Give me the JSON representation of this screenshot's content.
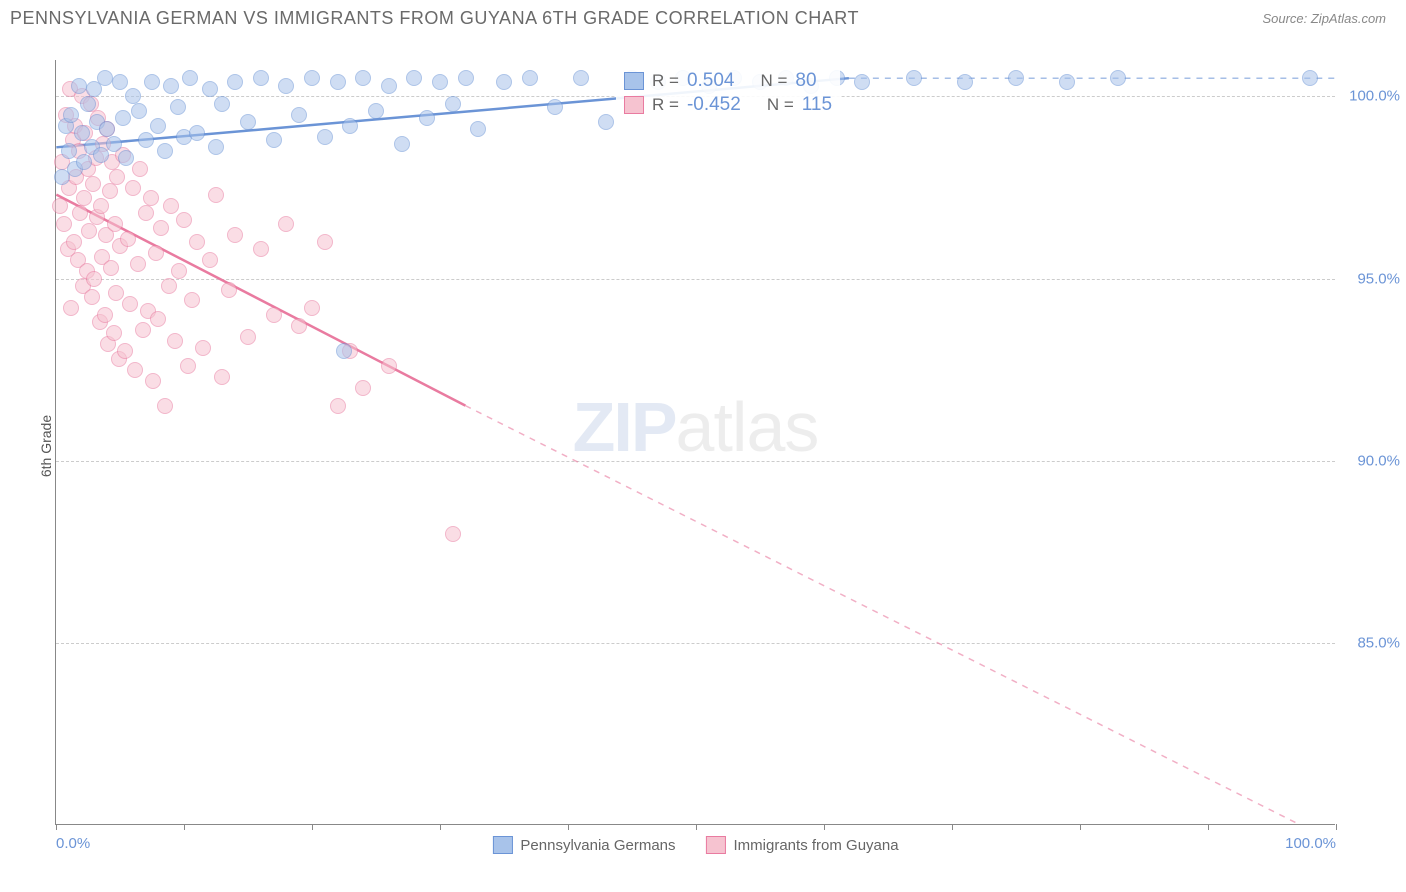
{
  "header": {
    "title": "PENNSYLVANIA GERMAN VS IMMIGRANTS FROM GUYANA 6TH GRADE CORRELATION CHART",
    "source": "Source: ZipAtlas.com"
  },
  "chart": {
    "type": "scatter",
    "ylabel": "6th Grade",
    "xlim": [
      0,
      100
    ],
    "ylim": [
      80,
      101
    ],
    "ytick_labels": [
      "100.0%",
      "95.0%",
      "90.0%",
      "85.0%"
    ],
    "ytick_values": [
      100,
      95,
      90,
      85
    ],
    "xtick_labels": [
      "0.0%",
      "100.0%"
    ],
    "xtick_values": [
      0,
      100
    ],
    "xtick_minor": [
      0,
      10,
      20,
      30,
      40,
      50,
      60,
      70,
      80,
      90,
      100
    ],
    "grid_color": "#cccccc",
    "background_color": "#ffffff",
    "marker_radius": 8,
    "series": {
      "blue": {
        "label": "Pennsylvania Germans",
        "fill": "#a8c3ea",
        "stroke": "#6b94d6",
        "R": "0.504",
        "N": "80",
        "trend": {
          "x1": 0,
          "y1": 98.6,
          "x2": 62,
          "y2": 100.5,
          "extrap_x2": 100,
          "extrap_y2": 100.5
        },
        "points": [
          [
            0.5,
            97.8
          ],
          [
            0.8,
            99.2
          ],
          [
            1.0,
            98.5
          ],
          [
            1.2,
            99.5
          ],
          [
            1.5,
            98.0
          ],
          [
            1.8,
            100.3
          ],
          [
            2.0,
            99.0
          ],
          [
            2.2,
            98.2
          ],
          [
            2.5,
            99.8
          ],
          [
            2.8,
            98.6
          ],
          [
            3.0,
            100.2
          ],
          [
            3.2,
            99.3
          ],
          [
            3.5,
            98.4
          ],
          [
            3.8,
            100.5
          ],
          [
            4.0,
            99.1
          ],
          [
            4.5,
            98.7
          ],
          [
            5.0,
            100.4
          ],
          [
            5.2,
            99.4
          ],
          [
            5.5,
            98.3
          ],
          [
            6.0,
            100.0
          ],
          [
            6.5,
            99.6
          ],
          [
            7.0,
            98.8
          ],
          [
            7.5,
            100.4
          ],
          [
            8.0,
            99.2
          ],
          [
            8.5,
            98.5
          ],
          [
            9.0,
            100.3
          ],
          [
            9.5,
            99.7
          ],
          [
            10.0,
            98.9
          ],
          [
            10.5,
            100.5
          ],
          [
            11.0,
            99.0
          ],
          [
            12.0,
            100.2
          ],
          [
            12.5,
            98.6
          ],
          [
            13.0,
            99.8
          ],
          [
            14.0,
            100.4
          ],
          [
            15.0,
            99.3
          ],
          [
            16.0,
            100.5
          ],
          [
            17.0,
            98.8
          ],
          [
            18.0,
            100.3
          ],
          [
            19.0,
            99.5
          ],
          [
            20.0,
            100.5
          ],
          [
            21.0,
            98.9
          ],
          [
            22.0,
            100.4
          ],
          [
            22.5,
            93.0
          ],
          [
            23.0,
            99.2
          ],
          [
            24.0,
            100.5
          ],
          [
            25.0,
            99.6
          ],
          [
            26.0,
            100.3
          ],
          [
            27.0,
            98.7
          ],
          [
            28.0,
            100.5
          ],
          [
            29.0,
            99.4
          ],
          [
            30.0,
            100.4
          ],
          [
            31.0,
            99.8
          ],
          [
            32.0,
            100.5
          ],
          [
            33.0,
            99.1
          ],
          [
            35.0,
            100.4
          ],
          [
            37.0,
            100.5
          ],
          [
            39.0,
            99.7
          ],
          [
            41.0,
            100.5
          ],
          [
            43.0,
            99.3
          ],
          [
            45.0,
            100.5
          ],
          [
            47.0,
            100.4
          ],
          [
            49.0,
            100.5
          ],
          [
            51.0,
            100.3
          ],
          [
            53.0,
            100.5
          ],
          [
            55.0,
            100.4
          ],
          [
            57.0,
            100.5
          ],
          [
            59.0,
            100.3
          ],
          [
            61.0,
            100.5
          ],
          [
            63.0,
            100.4
          ],
          [
            67.0,
            100.5
          ],
          [
            71.0,
            100.4
          ],
          [
            75.0,
            100.5
          ],
          [
            79.0,
            100.4
          ],
          [
            83.0,
            100.5
          ],
          [
            98.0,
            100.5
          ]
        ]
      },
      "pink": {
        "label": "Immigrants from Guyana",
        "fill": "#f6c3d0",
        "stroke": "#e97ba0",
        "R": "-0.452",
        "N": "115",
        "trend": {
          "x1": 0,
          "y1": 97.3,
          "x2": 32,
          "y2": 91.5,
          "extrap_x2": 100,
          "extrap_y2": 79.5
        },
        "points": [
          [
            0.3,
            97.0
          ],
          [
            0.5,
            98.2
          ],
          [
            0.6,
            96.5
          ],
          [
            0.8,
            99.5
          ],
          [
            0.9,
            95.8
          ],
          [
            1.0,
            97.5
          ],
          [
            1.1,
            100.2
          ],
          [
            1.2,
            94.2
          ],
          [
            1.3,
            98.8
          ],
          [
            1.4,
            96.0
          ],
          [
            1.5,
            99.2
          ],
          [
            1.6,
            97.8
          ],
          [
            1.7,
            95.5
          ],
          [
            1.8,
            98.5
          ],
          [
            1.9,
            96.8
          ],
          [
            2.0,
            100.0
          ],
          [
            2.1,
            94.8
          ],
          [
            2.2,
            97.2
          ],
          [
            2.3,
            99.0
          ],
          [
            2.4,
            95.2
          ],
          [
            2.5,
            98.0
          ],
          [
            2.6,
            96.3
          ],
          [
            2.7,
            99.8
          ],
          [
            2.8,
            94.5
          ],
          [
            2.9,
            97.6
          ],
          [
            3.0,
            95.0
          ],
          [
            3.1,
            98.3
          ],
          [
            3.2,
            96.7
          ],
          [
            3.3,
            99.4
          ],
          [
            3.4,
            93.8
          ],
          [
            3.5,
            97.0
          ],
          [
            3.6,
            95.6
          ],
          [
            3.7,
            98.7
          ],
          [
            3.8,
            94.0
          ],
          [
            3.9,
            96.2
          ],
          [
            4.0,
            99.1
          ],
          [
            4.1,
            93.2
          ],
          [
            4.2,
            97.4
          ],
          [
            4.3,
            95.3
          ],
          [
            4.4,
            98.2
          ],
          [
            4.5,
            93.5
          ],
          [
            4.6,
            96.5
          ],
          [
            4.7,
            94.6
          ],
          [
            4.8,
            97.8
          ],
          [
            4.9,
            92.8
          ],
          [
            5.0,
            95.9
          ],
          [
            5.2,
            98.4
          ],
          [
            5.4,
            93.0
          ],
          [
            5.6,
            96.1
          ],
          [
            5.8,
            94.3
          ],
          [
            6.0,
            97.5
          ],
          [
            6.2,
            92.5
          ],
          [
            6.4,
            95.4
          ],
          [
            6.6,
            98.0
          ],
          [
            6.8,
            93.6
          ],
          [
            7.0,
            96.8
          ],
          [
            7.2,
            94.1
          ],
          [
            7.4,
            97.2
          ],
          [
            7.6,
            92.2
          ],
          [
            7.8,
            95.7
          ],
          [
            8.0,
            93.9
          ],
          [
            8.2,
            96.4
          ],
          [
            8.5,
            91.5
          ],
          [
            8.8,
            94.8
          ],
          [
            9.0,
            97.0
          ],
          [
            9.3,
            93.3
          ],
          [
            9.6,
            95.2
          ],
          [
            10.0,
            96.6
          ],
          [
            10.3,
            92.6
          ],
          [
            10.6,
            94.4
          ],
          [
            11.0,
            96.0
          ],
          [
            11.5,
            93.1
          ],
          [
            12.0,
            95.5
          ],
          [
            12.5,
            97.3
          ],
          [
            13.0,
            92.3
          ],
          [
            13.5,
            94.7
          ],
          [
            14.0,
            96.2
          ],
          [
            15.0,
            93.4
          ],
          [
            16.0,
            95.8
          ],
          [
            17.0,
            94.0
          ],
          [
            18.0,
            96.5
          ],
          [
            19.0,
            93.7
          ],
          [
            20.0,
            94.2
          ],
          [
            21.0,
            96.0
          ],
          [
            22.0,
            91.5
          ],
          [
            23.0,
            93.0
          ],
          [
            24.0,
            92.0
          ],
          [
            26.0,
            92.6
          ],
          [
            31.0,
            88.0
          ]
        ]
      }
    },
    "legend_top": {
      "R_label": "R =",
      "N_label": "N ="
    },
    "watermark": {
      "part1": "ZIP",
      "part2": "atlas"
    }
  }
}
